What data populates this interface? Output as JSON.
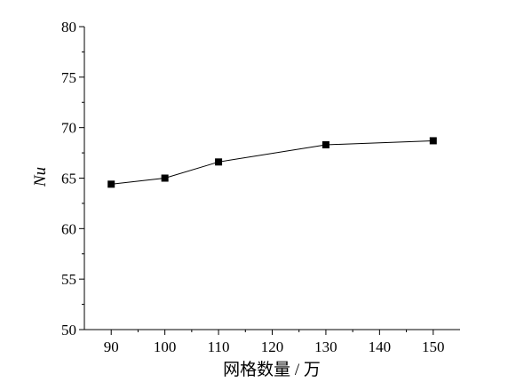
{
  "chart_data": {
    "type": "line",
    "title": "",
    "xlabel": "网格数量 / 万",
    "ylabel": "Nu",
    "xlim": [
      85,
      155
    ],
    "ylim": [
      50,
      80
    ],
    "xticks": [
      90,
      100,
      110,
      120,
      130,
      140,
      150
    ],
    "yticks": [
      50,
      55,
      60,
      65,
      70,
      75,
      80
    ],
    "grid": false,
    "legend": "none",
    "series": [
      {
        "x": [
          90,
          100,
          110,
          130,
          150
        ],
        "y": [
          64.4,
          65.0,
          66.6,
          68.3,
          68.7
        ],
        "marker": "square",
        "color": "#000000"
      }
    ]
  }
}
